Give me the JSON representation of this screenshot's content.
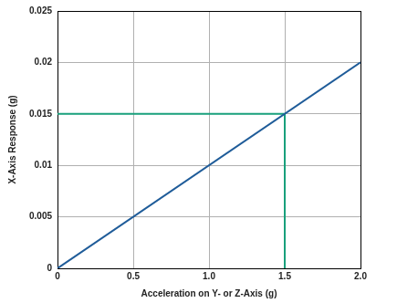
{
  "chart_data": {
    "type": "line",
    "x_label": "Acceleration on Y- or Z-Axis (g)",
    "y_label": "X-Axis Response (g)",
    "series": [
      {
        "color": "#1f5c99",
        "x": [
          0,
          2.0
        ],
        "values": [
          0,
          0.02
        ]
      },
      {
        "color": "#19a07c",
        "x": [
          0,
          1.5,
          1.5
        ],
        "values": [
          0.015,
          0.015,
          0
        ]
      }
    ],
    "xlim": [
      0,
      2.0
    ],
    "xticks": [
      0,
      0.5,
      {
        "value": 1,
        "label": "1.0"
      },
      1.5,
      {
        "value": 2,
        "label": "2.0"
      }
    ],
    "ylim": [
      0,
      0.025
    ],
    "yticks": [
      0,
      0.005,
      0.01,
      0.015,
      0.02,
      0.025
    ],
    "grid": true
  }
}
